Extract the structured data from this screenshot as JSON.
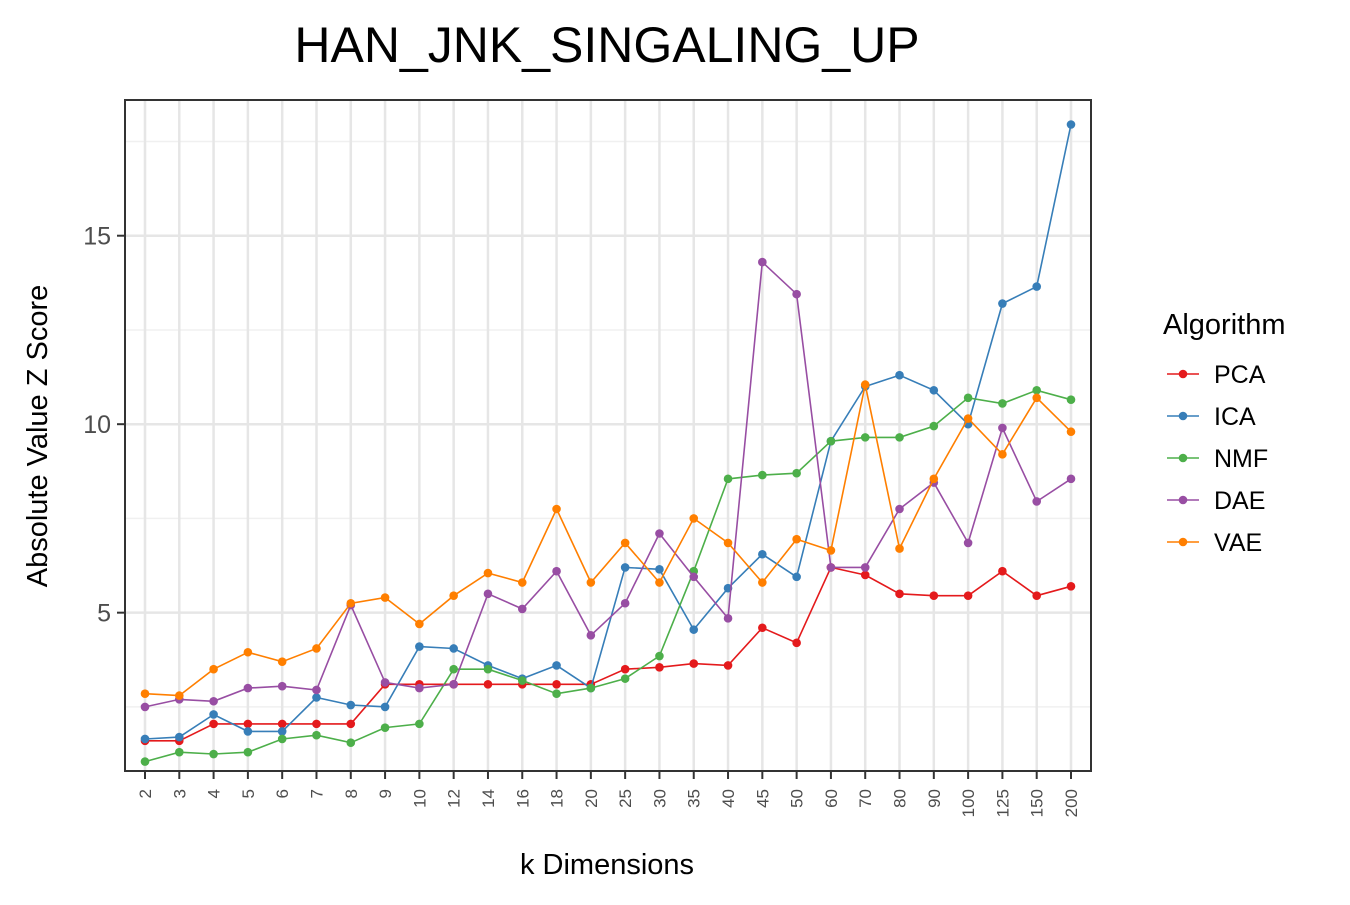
{
  "chart_data": {
    "type": "line",
    "title": "HAN_JNK_SINGALING_UP",
    "xlabel": "k Dimensions",
    "ylabel": "Absolute Value Z Score",
    "categories": [
      "2",
      "3",
      "4",
      "5",
      "6",
      "7",
      "8",
      "9",
      "10",
      "12",
      "14",
      "16",
      "18",
      "20",
      "25",
      "30",
      "35",
      "40",
      "45",
      "50",
      "60",
      "70",
      "80",
      "90",
      "100",
      "125",
      "150",
      "200"
    ],
    "ylim": [
      0.8,
      18.6
    ],
    "yticks": [
      5,
      10,
      15
    ],
    "grid": true,
    "legend_title": "Algorithm",
    "legend_position": "right",
    "series": [
      {
        "name": "PCA",
        "color": "#e41a1c",
        "values": [
          1.6,
          1.6,
          2.05,
          2.05,
          2.05,
          2.05,
          2.05,
          3.1,
          3.1,
          3.1,
          3.1,
          3.1,
          3.1,
          3.1,
          3.5,
          3.55,
          3.65,
          3.6,
          4.6,
          4.2,
          6.2,
          6.0,
          5.5,
          5.45,
          5.45,
          6.1,
          5.45,
          5.7
        ]
      },
      {
        "name": "ICA",
        "color": "#377eb8",
        "values": [
          1.65,
          1.7,
          2.3,
          1.85,
          1.85,
          2.75,
          2.55,
          2.5,
          4.1,
          4.05,
          3.6,
          3.25,
          3.6,
          3.0,
          6.2,
          6.15,
          4.55,
          5.65,
          6.55,
          5.95,
          9.55,
          11.0,
          11.3,
          10.9,
          10.0,
          13.2,
          13.65,
          17.95
        ]
      },
      {
        "name": "NMF",
        "color": "#4daf4a",
        "values": [
          1.05,
          1.3,
          1.25,
          1.3,
          1.65,
          1.75,
          1.55,
          1.95,
          2.05,
          3.5,
          3.5,
          3.2,
          2.85,
          3.0,
          3.25,
          3.85,
          6.1,
          8.55,
          8.65,
          8.7,
          9.55,
          9.65,
          9.65,
          9.95,
          10.7,
          10.55,
          10.9,
          10.65
        ]
      },
      {
        "name": "DAE",
        "color": "#984ea3",
        "values": [
          2.5,
          2.7,
          2.65,
          3.0,
          3.05,
          2.95,
          5.2,
          3.15,
          3.0,
          3.1,
          5.5,
          5.1,
          6.1,
          4.4,
          5.25,
          7.1,
          5.95,
          4.85,
          14.3,
          13.45,
          6.2,
          6.2,
          7.75,
          8.45,
          6.85,
          9.9,
          7.95,
          8.55
        ]
      },
      {
        "name": "VAE",
        "color": "#ff7f00",
        "values": [
          2.85,
          2.8,
          3.5,
          3.95,
          3.7,
          4.05,
          5.25,
          5.4,
          4.7,
          5.45,
          6.05,
          5.8,
          7.75,
          5.8,
          6.85,
          5.8,
          7.5,
          6.85,
          5.8,
          6.95,
          6.65,
          11.05,
          6.7,
          8.55,
          10.15,
          9.2,
          10.7,
          9.8
        ]
      }
    ]
  }
}
